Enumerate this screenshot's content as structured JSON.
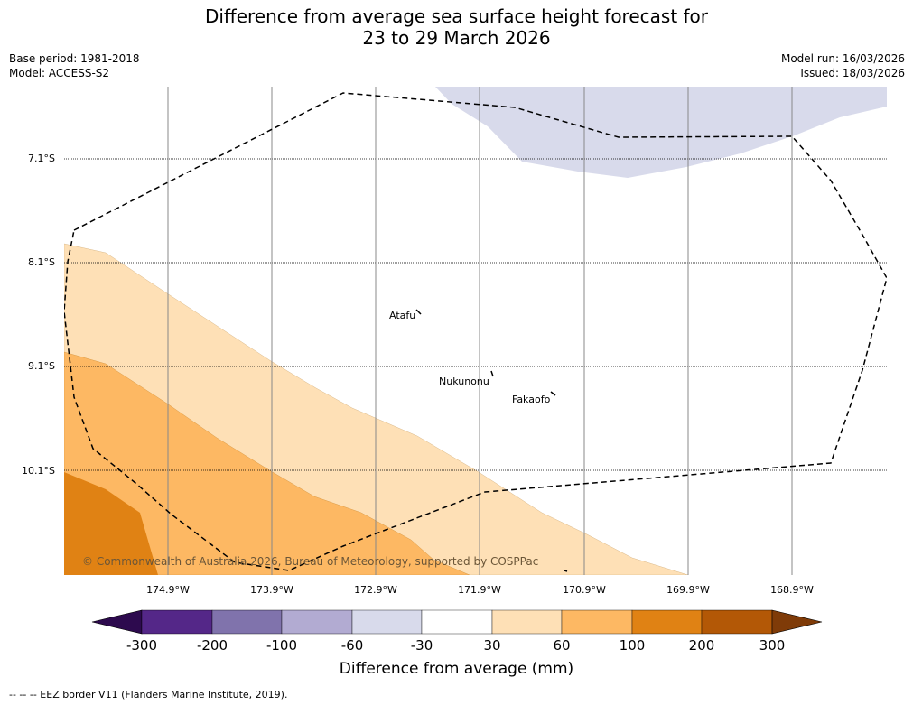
{
  "header": {
    "title_line1": "Difference from average sea surface height forecast for",
    "title_line2": "23 to 29 March 2026",
    "base_period": "Base period: 1981-2018",
    "model": "Model: ACCESS-S2",
    "model_run": "Model run: 16/03/2026",
    "issued": "Issued: 18/03/2026"
  },
  "map": {
    "latitudes": [
      "7.1°S",
      "8.1°S",
      "9.1°S",
      "10.1°S"
    ],
    "longitudes": [
      "174.9°W",
      "173.9°W",
      "172.9°W",
      "171.9°W",
      "170.9°W",
      "169.9°W",
      "168.9°W"
    ],
    "islands": [
      "Atafu",
      "Nukunonu",
      "Fakaofo"
    ],
    "copyright": "© Commonwealth of Australia 2026, Bureau of Meteorology, supported by COSPPac"
  },
  "colorbar": {
    "ticks": [
      "-300",
      "-200",
      "-100",
      "-60",
      "-30",
      "30",
      "60",
      "100",
      "200",
      "300"
    ],
    "colors": [
      "#2d0a4e",
      "#542788",
      "#8073ac",
      "#b2abd2",
      "#d8daeb",
      "#ffffff",
      "#fee0b6",
      "#fdb863",
      "#e08214",
      "#b35806",
      "#7f3b08"
    ],
    "label": "Difference from average (mm)"
  },
  "footnote": "--  --  -- EEZ border V11 (Flanders Marine Institute, 2019)."
}
